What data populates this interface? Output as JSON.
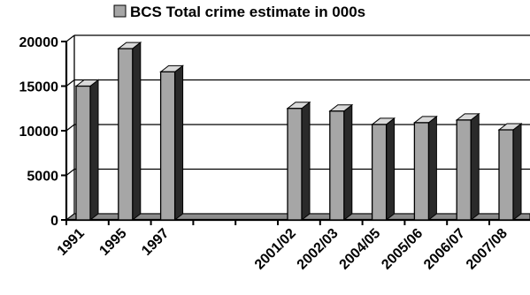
{
  "chart_data": {
    "type": "bar",
    "title": "",
    "xlabel": "",
    "ylabel": "",
    "categories": [
      "1991",
      "1995",
      "1997",
      "",
      "",
      "2001/02",
      "2002/03",
      "2004/05",
      "2005/06",
      "2006/07",
      "2007/08",
      ""
    ],
    "series": [
      {
        "name": "BCS Total crime estimate in 000s",
        "values": [
          15000,
          19200,
          16600,
          null,
          null,
          12500,
          12200,
          10700,
          10900,
          11200,
          10100,
          10000
        ]
      }
    ],
    "ylim": [
      0,
      20000
    ],
    "yticks": [
      "0",
      "5000",
      "10000",
      "15000",
      "20000"
    ],
    "grid": true,
    "legend_position": "top",
    "colors": {
      "bar_front": "#a6a6a6",
      "bar_side": "#2a2a2a",
      "bar_top": "#d9d9d9",
      "outline": "#000000",
      "floor": "#8c8c8c"
    }
  }
}
